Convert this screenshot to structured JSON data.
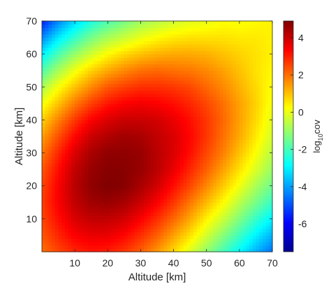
{
  "chart_data": {
    "type": "heatmap",
    "xlabel": "Altitude [km]",
    "ylabel": "Altitude [km]",
    "colorbar_label": "log10cov",
    "colorbar_label_base": "log",
    "colorbar_label_sub": "10",
    "colorbar_label_tail": "cov",
    "xlim": [
      0,
      70
    ],
    "ylim": [
      0,
      70
    ],
    "xticks": [
      "10",
      "20",
      "30",
      "40",
      "50",
      "60",
      "70"
    ],
    "yticks": [
      "10",
      "20",
      "30",
      "40",
      "50",
      "60",
      "70"
    ],
    "clim": [
      -7.5,
      4.9
    ],
    "cticks": [
      "4",
      "2",
      "0",
      "-2",
      "-4",
      "-6"
    ],
    "colormap": "jet",
    "grid": false,
    "z_grid_step_km": 5,
    "z_grid": [
      [
        2.0,
        2.5,
        2.9,
        3.1,
        3.0,
        2.7,
        2.2,
        1.5,
        0.7,
        -0.2,
        -1.1,
        -2.0,
        -2.9,
        -3.8,
        -4.6
      ],
      [
        2.3,
        2.9,
        3.4,
        3.6,
        3.6,
        3.3,
        2.8,
        2.2,
        1.4,
        0.6,
        -0.3,
        -1.2,
        -2.1,
        -3.0,
        -3.8
      ],
      [
        2.5,
        3.2,
        3.8,
        4.1,
        4.1,
        3.9,
        3.4,
        2.8,
        2.1,
        1.3,
        0.4,
        -0.4,
        -1.3,
        -2.2,
        -3.0
      ],
      [
        2.6,
        3.4,
        4.1,
        4.5,
        4.6,
        4.4,
        4.0,
        3.4,
        2.7,
        1.9,
        1.1,
        0.3,
        -0.6,
        -1.4,
        -2.2
      ],
      [
        2.5,
        3.4,
        4.2,
        4.7,
        4.9,
        4.8,
        4.4,
        3.9,
        3.2,
        2.5,
        1.7,
        0.9,
        0.1,
        -0.8,
        -1.5
      ],
      [
        2.3,
        3.2,
        4.1,
        4.6,
        4.8,
        4.8,
        4.6,
        4.2,
        3.6,
        2.9,
        2.2,
        1.4,
        0.6,
        -0.2,
        -1.0
      ],
      [
        1.9,
        2.9,
        3.8,
        4.4,
        4.7,
        4.7,
        4.6,
        4.2,
        3.8,
        3.2,
        2.5,
        1.8,
        1.0,
        0.2,
        -0.6
      ],
      [
        1.4,
        2.4,
        3.3,
        4.0,
        4.3,
        4.5,
        4.4,
        4.1,
        3.8,
        3.3,
        2.7,
        2.0,
        1.3,
        0.5,
        -0.3
      ],
      [
        0.8,
        1.8,
        2.7,
        3.4,
        3.8,
        4.0,
        4.0,
        3.9,
        3.6,
        3.2,
        2.7,
        2.1,
        1.4,
        0.7,
        -0.1
      ],
      [
        0.1,
        1.0,
        1.9,
        2.6,
        3.1,
        3.4,
        3.5,
        3.4,
        3.2,
        2.9,
        2.5,
        2.0,
        1.4,
        0.8,
        0.1
      ],
      [
        -0.8,
        0.2,
        1.0,
        1.7,
        2.3,
        2.6,
        2.8,
        2.8,
        2.7,
        2.5,
        2.1,
        1.7,
        1.2,
        0.7,
        0.2
      ],
      [
        -1.9,
        -0.8,
        0.1,
        0.8,
        1.3,
        1.7,
        2.0,
        2.1,
        2.0,
        1.9,
        1.7,
        1.4,
        1.0,
        0.6,
        0.3
      ],
      [
        -3.0,
        -1.9,
        -1.0,
        -0.3,
        0.3,
        0.7,
        1.0,
        1.2,
        1.3,
        1.3,
        1.2,
        1.0,
        0.8,
        0.6,
        0.4
      ],
      [
        -4.3,
        -3.1,
        -2.2,
        -1.4,
        -0.8,
        -0.4,
        0.0,
        0.3,
        0.5,
        0.6,
        0.6,
        0.6,
        0.5,
        0.5,
        0.4
      ],
      [
        -5.6,
        -4.3,
        -3.3,
        -2.5,
        -1.9,
        -1.4,
        -0.9,
        -0.6,
        -0.3,
        -0.1,
        0.0,
        0.2,
        0.2,
        0.3,
        0.4
      ]
    ]
  }
}
